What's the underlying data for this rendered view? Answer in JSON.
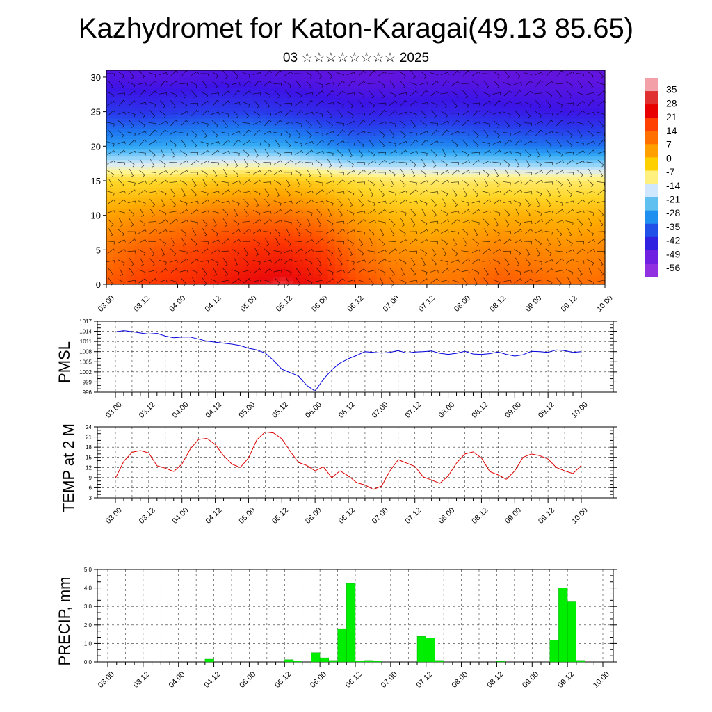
{
  "title": "Kazhydromet for Katon-Karagai(49.13 85.65)",
  "subtitle": "03 ☆☆☆☆☆☆☆☆ 2025",
  "colors": {
    "pmsl_line": "#0000dd",
    "temp_line": "#dd0000",
    "precip_bar": "#00ee00",
    "precip_bar_edge": "#009900",
    "grid": "#000000",
    "wind_barbs": "#000000"
  },
  "colorbar": {
    "labels": [
      "35",
      "28",
      "21",
      "14",
      "7",
      "0",
      "-7",
      "-14",
      "-21",
      "-28",
      "-35",
      "-42",
      "-49",
      "-56"
    ],
    "colors": [
      "#f4a0a8",
      "#e03030",
      "#e80000",
      "#ff4000",
      "#ff7000",
      "#ffa000",
      "#ffd000",
      "#fff080",
      "#d0e8ff",
      "#60c0f0",
      "#2090f0",
      "#2050e8",
      "#3020e0",
      "#7020e0",
      "#9030e0"
    ]
  },
  "chart_data": [
    {
      "type": "heatmap",
      "title": "",
      "xlabel": "",
      "ylabel": "",
      "x_ticks": [
        "03.00",
        "03.12",
        "04.00",
        "04.12",
        "05.00",
        "05.12",
        "06.00",
        "06.12",
        "07.00",
        "07.12",
        "08.00",
        "08.12",
        "09.00",
        "09.12",
        "10.00"
      ],
      "y_ticks": [
        "0",
        "5",
        "10",
        "15",
        "20",
        "25",
        "30"
      ],
      "ylim": [
        0,
        31
      ],
      "note_units": "temperature shading by level with wind barbs",
      "layers": [
        {
          "y": 0,
          "values": [
            18,
            22,
            24,
            27,
            30,
            32,
            28,
            20,
            16,
            14,
            15,
            18,
            17,
            15,
            16
          ]
        },
        {
          "y": 5,
          "values": [
            14,
            17,
            19,
            22,
            24,
            25,
            22,
            15,
            11,
            10,
            11,
            13,
            12,
            11,
            12
          ]
        },
        {
          "y": 10,
          "values": [
            8,
            10,
            12,
            14,
            15,
            15,
            13,
            8,
            5,
            4,
            5,
            6,
            6,
            5,
            6
          ]
        },
        {
          "y": 15,
          "values": [
            0,
            -1,
            0,
            2,
            3,
            3,
            1,
            -2,
            -4,
            -5,
            -5,
            -4,
            -5,
            -5,
            -5
          ]
        },
        {
          "y": 20,
          "values": [
            -30,
            -29,
            -28,
            -27,
            -27,
            -28,
            -32,
            -36,
            -35,
            -33,
            -34,
            -35,
            -36,
            -37,
            -37
          ]
        },
        {
          "y": 25,
          "values": [
            -45,
            -46,
            -45,
            -44,
            -44,
            -46,
            -48,
            -50,
            -50,
            -49,
            -49,
            -50,
            -51,
            -52,
            -52
          ]
        },
        {
          "y": 30,
          "values": [
            -55,
            -56,
            -56,
            -55,
            -55,
            -56,
            -57,
            -58,
            -58,
            -57,
            -57,
            -58,
            -58,
            -58,
            -58
          ]
        }
      ]
    },
    {
      "type": "line",
      "title": "",
      "xlabel": "",
      "ylabel": "PMSL",
      "x_ticks": [
        "03.00",
        "03.12",
        "04.00",
        "04.12",
        "05.00",
        "05.12",
        "06.00",
        "06.12",
        "07.00",
        "07.12",
        "08.00",
        "08.12",
        "09.00",
        "09.12",
        "10.00"
      ],
      "y_ticks": [
        "1017",
        "1014",
        "1011",
        "1008",
        "1005",
        "1002",
        "999",
        "996"
      ],
      "ylim": [
        996,
        1017
      ],
      "x": [
        0,
        3,
        6,
        9,
        12,
        15,
        18,
        21,
        24,
        27,
        30,
        33,
        36,
        39,
        42,
        45,
        48,
        51,
        54,
        57,
        60,
        63,
        66,
        69,
        72,
        75,
        78,
        81,
        84,
        87,
        90,
        93,
        96,
        99,
        102,
        105,
        108,
        111,
        114,
        117,
        120,
        123,
        126,
        129,
        132,
        135,
        138,
        141,
        144,
        147,
        150,
        153,
        156,
        159,
        162,
        165,
        168
      ],
      "series": [
        {
          "values": [
            1013.8,
            1014.2,
            1013.9,
            1013.5,
            1013.2,
            1013.4,
            1012.6,
            1012.1,
            1012.3,
            1012.3,
            1011.7,
            1011.1,
            1010.8,
            1010.5,
            1010.2,
            1009.8,
            1009.0,
            1008.5,
            1007.6,
            1005.4,
            1002.8,
            1001.8,
            1000.8,
            998.0,
            996.3,
            999.8,
            1002.6,
            1004.6,
            1005.9,
            1006.9,
            1008.0,
            1007.8,
            1007.6,
            1007.8,
            1008.3,
            1007.6,
            1007.9,
            1008.0,
            1008.2,
            1007.5,
            1007.2,
            1007.5,
            1008.1,
            1007.3,
            1007.2,
            1007.4,
            1007.9,
            1007.2,
            1006.7,
            1007.1,
            1008.1,
            1008.0,
            1007.8,
            1008.5,
            1008.3,
            1007.8,
            1008.0
          ]
        }
      ]
    },
    {
      "type": "line",
      "title": "",
      "xlabel": "",
      "ylabel": "TEMP at 2 M",
      "x_ticks": [
        "03.00",
        "03.12",
        "04.00",
        "04.12",
        "05.00",
        "05.12",
        "06.00",
        "06.12",
        "07.00",
        "07.12",
        "08.00",
        "08.12",
        "09.00",
        "09.12",
        "10.00"
      ],
      "y_ticks": [
        "24",
        "21",
        "18",
        "15",
        "12",
        "9",
        "6",
        "3"
      ],
      "ylim": [
        3,
        24
      ],
      "x": [
        0,
        3,
        6,
        9,
        12,
        15,
        18,
        21,
        24,
        27,
        30,
        33,
        36,
        39,
        42,
        45,
        48,
        51,
        54,
        57,
        60,
        63,
        66,
        69,
        72,
        75,
        78,
        81,
        84,
        87,
        90,
        93,
        96,
        99,
        102,
        105,
        108,
        111,
        114,
        117,
        120,
        123,
        126,
        129,
        132,
        135,
        138,
        141,
        144,
        147,
        150,
        153,
        156,
        159,
        162,
        165,
        168
      ],
      "series": [
        {
          "values": [
            8.8,
            13.8,
            16.5,
            17.0,
            16.3,
            12.5,
            11.8,
            10.8,
            13.0,
            17.5,
            20.3,
            20.6,
            18.8,
            15.5,
            13.0,
            12.0,
            14.8,
            20.2,
            22.5,
            22.2,
            20.5,
            16.8,
            13.5,
            12.6,
            11.0,
            12.2,
            9.0,
            11.0,
            9.5,
            7.5,
            6.8,
            5.5,
            6.5,
            11.0,
            14.3,
            13.3,
            12.3,
            9.2,
            8.3,
            7.3,
            9.5,
            13.3,
            16.0,
            16.6,
            14.8,
            10.8,
            9.8,
            8.5,
            11.0,
            15.0,
            16.0,
            15.5,
            14.5,
            12.0,
            11.0,
            10.2,
            12.6
          ]
        }
      ]
    },
    {
      "type": "bar",
      "title": "",
      "xlabel": "",
      "ylabel": "PRECIP, mm",
      "x_ticks": [
        "03.00",
        "03.12",
        "04.00",
        "04.12",
        "05.00",
        "05.12",
        "06.00",
        "06.12",
        "07.00",
        "07.12",
        "08.00",
        "08.12",
        "09.00",
        "09.12",
        "10.00"
      ],
      "y_ticks": [
        "5.0",
        "4.0",
        "3.0",
        "2.0",
        "1.0",
        "0.0"
      ],
      "ylim": [
        0,
        5
      ],
      "x": [
        0,
        3,
        6,
        9,
        12,
        15,
        18,
        21,
        24,
        27,
        30,
        33,
        36,
        39,
        42,
        45,
        48,
        51,
        54,
        57,
        60,
        63,
        66,
        69,
        72,
        75,
        78,
        81,
        84,
        87,
        90,
        93,
        96,
        99,
        102,
        105,
        108,
        111,
        114,
        117,
        120,
        123,
        126,
        129,
        132,
        135,
        138,
        141,
        144,
        147,
        150,
        153,
        156,
        159,
        162,
        165
      ],
      "series": [
        {
          "values": [
            0,
            0,
            0,
            0,
            0,
            0,
            0,
            0,
            0,
            0,
            0,
            0.15,
            0,
            0,
            0,
            0,
            0,
            0,
            0,
            0,
            0.12,
            0.04,
            0,
            0.5,
            0.22,
            0.08,
            1.8,
            4.25,
            0.05,
            0.08,
            0.04,
            0,
            0,
            0,
            0,
            1.38,
            1.3,
            0.08,
            0,
            0,
            0,
            0,
            0,
            0,
            0.03,
            0,
            0,
            0,
            0,
            0,
            1.18,
            4.0,
            3.25,
            0.08,
            0,
            0
          ]
        }
      ]
    }
  ]
}
